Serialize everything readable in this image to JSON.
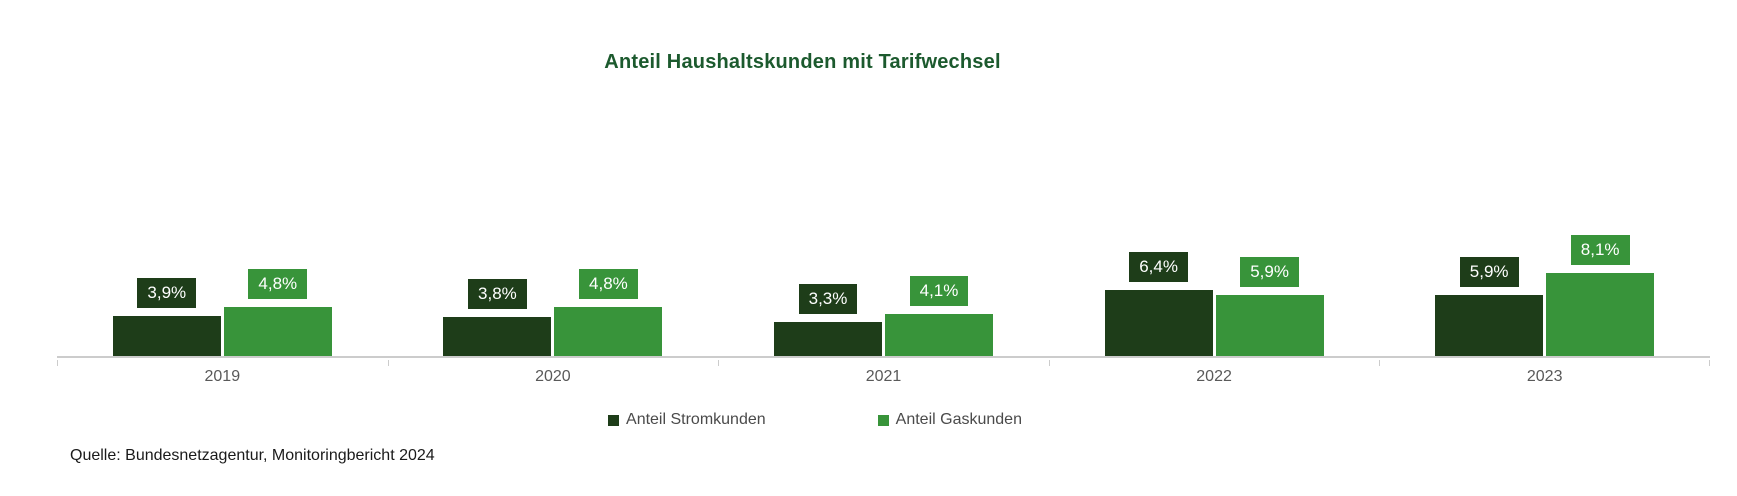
{
  "chart": {
    "title": "Anteil Haushaltskunden mit Tarifwechsel",
    "title_color": "#1c5a2e",
    "source": "Quelle: Bundesnetzagentur, Monitoringbericht 2024"
  },
  "chart_data": {
    "type": "bar",
    "title": "Anteil Haushaltskunden mit Tarifwechsel",
    "categories": [
      "2019",
      "2020",
      "2021",
      "2022",
      "2023"
    ],
    "series": [
      {
        "name": "Anteil Stromkunden",
        "color": "#1e3d19",
        "values": [
          3.9,
          3.8,
          3.3,
          6.4,
          5.9
        ],
        "labels": [
          "3,9%",
          "3,8%",
          "3,3%",
          "6,4%",
          "5,9%"
        ]
      },
      {
        "name": "Anteil Gaskunden",
        "color": "#38943a",
        "values": [
          4.8,
          4.8,
          4.1,
          5.9,
          8.1
        ],
        "labels": [
          "4,8%",
          "4,8%",
          "4,1%",
          "5,9%",
          "8,1%"
        ]
      }
    ],
    "value_labels_shown": true,
    "y_axis_visible": false,
    "grid": false,
    "axis_line_color": "#cccccc",
    "legend_position": "bottom",
    "source": "Quelle: Bundesnetzagentur, Monitoringbericht 2024"
  }
}
